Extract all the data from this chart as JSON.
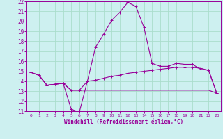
{
  "xlabel": "Windchill (Refroidissement éolien,°C)",
  "bg_color": "#cdf0f0",
  "grid_color": "#aaddcc",
  "line_color": "#990099",
  "xlim": [
    -0.5,
    23.5
  ],
  "ylim": [
    11,
    22
  ],
  "xticks": [
    0,
    1,
    2,
    3,
    4,
    5,
    6,
    7,
    8,
    9,
    10,
    11,
    12,
    13,
    14,
    15,
    16,
    17,
    18,
    19,
    20,
    21,
    22,
    23
  ],
  "yticks": [
    11,
    12,
    13,
    14,
    15,
    16,
    17,
    18,
    19,
    20,
    21,
    22
  ],
  "line1_x": [
    0,
    1,
    2,
    3,
    4,
    5,
    6,
    7,
    8,
    9,
    10,
    11,
    12,
    13,
    14,
    15,
    16,
    17,
    18,
    19,
    20,
    21,
    22,
    23
  ],
  "line1_y": [
    14.9,
    14.6,
    13.6,
    13.7,
    13.8,
    13.1,
    13.1,
    14.0,
    14.1,
    14.3,
    14.5,
    14.6,
    14.8,
    14.9,
    15.0,
    15.1,
    15.2,
    15.3,
    15.4,
    15.4,
    15.4,
    15.3,
    15.1,
    12.8
  ],
  "line2_x": [
    0,
    1,
    2,
    3,
    4,
    5,
    6,
    7,
    8,
    9,
    10,
    11,
    12,
    13,
    14,
    15,
    16,
    17,
    18,
    19,
    20,
    21,
    22,
    23
  ],
  "line2_y": [
    14.9,
    14.6,
    13.6,
    13.7,
    13.8,
    11.2,
    10.9,
    14.0,
    17.4,
    18.7,
    20.1,
    20.9,
    21.9,
    21.5,
    19.4,
    15.8,
    15.5,
    15.5,
    15.8,
    15.7,
    15.7,
    15.2,
    15.1,
    12.8
  ],
  "line3_x": [
    0,
    1,
    2,
    3,
    4,
    5,
    6,
    7,
    8,
    9,
    10,
    11,
    12,
    13,
    14,
    15,
    16,
    17,
    18,
    19,
    20,
    21,
    22,
    23
  ],
  "line3_y": [
    14.9,
    14.6,
    13.6,
    13.7,
    13.8,
    13.1,
    13.1,
    13.1,
    13.1,
    13.1,
    13.1,
    13.1,
    13.1,
    13.1,
    13.1,
    13.1,
    13.1,
    13.1,
    13.1,
    13.1,
    13.1,
    13.1,
    13.1,
    12.8
  ]
}
